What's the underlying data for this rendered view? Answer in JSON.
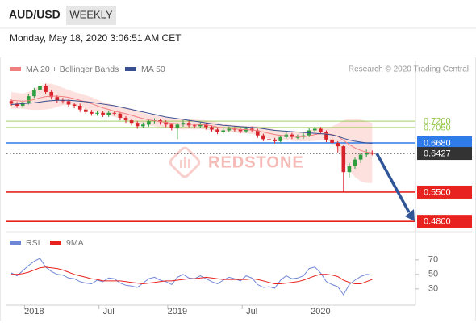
{
  "header": {
    "symbol": "AUD/USD",
    "timeframe": "WEEKLY",
    "timestamp": "Monday, May 18, 2020 3:06:51 AM CET"
  },
  "chart_data": [
    {
      "type": "candlestick",
      "credit": "Research © 2020 Trading Central",
      "watermark": "REDSTONE",
      "up_color": "#2e9e3f",
      "down_color": "#d8232a",
      "open": [
        0.768,
        0.762,
        0.757,
        0.765,
        0.78,
        0.795,
        0.805,
        0.79,
        0.778,
        0.77,
        0.768,
        0.76,
        0.757,
        0.748,
        0.742,
        0.738,
        0.74,
        0.735,
        0.74,
        0.738,
        0.728,
        0.722,
        0.716,
        0.708,
        0.712,
        0.72,
        0.722,
        0.718,
        0.712,
        0.704,
        0.712,
        0.716,
        0.71,
        0.708,
        0.712,
        0.706,
        0.7,
        0.694,
        0.698,
        0.702,
        0.7,
        0.696,
        0.702,
        0.698,
        0.686,
        0.677,
        0.676,
        0.672,
        0.682,
        0.688,
        0.682,
        0.682,
        0.686,
        0.698,
        0.702,
        0.694,
        0.676,
        0.668,
        0.66,
        0.598,
        0.612,
        0.628,
        0.64,
        0.644
      ],
      "high": [
        0.772,
        0.766,
        0.77,
        0.786,
        0.8,
        0.811,
        0.81,
        0.795,
        0.782,
        0.776,
        0.772,
        0.764,
        0.762,
        0.752,
        0.747,
        0.745,
        0.744,
        0.745,
        0.745,
        0.742,
        0.732,
        0.726,
        0.72,
        0.717,
        0.725,
        0.727,
        0.726,
        0.722,
        0.716,
        0.716,
        0.722,
        0.721,
        0.714,
        0.717,
        0.716,
        0.71,
        0.704,
        0.703,
        0.707,
        0.706,
        0.704,
        0.707,
        0.707,
        0.702,
        0.69,
        0.682,
        0.68,
        0.687,
        0.693,
        0.692,
        0.688,
        0.691,
        0.703,
        0.707,
        0.706,
        0.698,
        0.681,
        0.672,
        0.662,
        0.62,
        0.633,
        0.644,
        0.652,
        0.65
      ],
      "low": [
        0.757,
        0.752,
        0.752,
        0.76,
        0.776,
        0.79,
        0.784,
        0.772,
        0.764,
        0.762,
        0.755,
        0.751,
        0.742,
        0.737,
        0.733,
        0.733,
        0.73,
        0.73,
        0.733,
        0.722,
        0.716,
        0.71,
        0.702,
        0.703,
        0.707,
        0.715,
        0.712,
        0.706,
        0.698,
        0.677,
        0.707,
        0.705,
        0.703,
        0.703,
        0.7,
        0.695,
        0.689,
        0.69,
        0.693,
        0.695,
        0.691,
        0.692,
        0.693,
        0.68,
        0.672,
        0.67,
        0.667,
        0.668,
        0.678,
        0.677,
        0.677,
        0.678,
        0.682,
        0.693,
        0.689,
        0.67,
        0.662,
        0.645,
        0.55,
        0.585,
        0.606,
        0.62,
        0.634,
        0.638
      ],
      "close": [
        0.762,
        0.757,
        0.765,
        0.78,
        0.795,
        0.805,
        0.79,
        0.778,
        0.77,
        0.768,
        0.76,
        0.757,
        0.748,
        0.742,
        0.738,
        0.74,
        0.735,
        0.74,
        0.738,
        0.728,
        0.722,
        0.716,
        0.708,
        0.712,
        0.72,
        0.722,
        0.718,
        0.712,
        0.704,
        0.712,
        0.716,
        0.71,
        0.708,
        0.712,
        0.706,
        0.7,
        0.694,
        0.698,
        0.702,
        0.7,
        0.696,
        0.702,
        0.698,
        0.686,
        0.677,
        0.676,
        0.672,
        0.682,
        0.688,
        0.682,
        0.682,
        0.686,
        0.698,
        0.702,
        0.694,
        0.676,
        0.668,
        0.66,
        0.598,
        0.612,
        0.628,
        0.64,
        0.644,
        0.6427
      ],
      "series": [
        {
          "name": "MA 20 + Bollinger Bands",
          "color": "#f08080",
          "band_color": "#fbd9d6",
          "values": [
            0.77,
            0.769,
            0.768,
            0.769,
            0.772,
            0.776,
            0.779,
            0.78,
            0.78,
            0.779,
            0.777,
            0.774,
            0.77,
            0.766,
            0.762,
            0.757,
            0.752,
            0.748,
            0.744,
            0.741,
            0.738,
            0.734,
            0.73,
            0.726,
            0.723,
            0.721,
            0.719,
            0.717,
            0.715,
            0.714,
            0.713,
            0.713,
            0.712,
            0.712,
            0.711,
            0.709,
            0.706,
            0.704,
            0.703,
            0.702,
            0.7,
            0.7,
            0.699,
            0.697,
            0.694,
            0.691,
            0.688,
            0.686,
            0.685,
            0.684,
            0.683,
            0.683,
            0.685,
            0.688,
            0.69,
            0.69,
            0.688,
            0.684,
            0.674,
            0.664,
            0.656,
            0.65,
            0.646,
            0.644
          ],
          "upper": [
            0.79,
            0.788,
            0.786,
            0.79,
            0.797,
            0.805,
            0.81,
            0.81,
            0.806,
            0.8,
            0.795,
            0.79,
            0.786,
            0.782,
            0.778,
            0.772,
            0.766,
            0.762,
            0.758,
            0.755,
            0.753,
            0.75,
            0.745,
            0.74,
            0.736,
            0.734,
            0.732,
            0.73,
            0.728,
            0.727,
            0.726,
            0.725,
            0.724,
            0.723,
            0.722,
            0.72,
            0.717,
            0.714,
            0.712,
            0.711,
            0.709,
            0.709,
            0.709,
            0.708,
            0.706,
            0.704,
            0.7,
            0.698,
            0.696,
            0.695,
            0.694,
            0.694,
            0.698,
            0.703,
            0.706,
            0.706,
            0.707,
            0.715,
            0.722,
            0.726,
            0.726,
            0.724,
            0.72,
            0.716
          ],
          "lower": [
            0.75,
            0.75,
            0.75,
            0.748,
            0.747,
            0.747,
            0.748,
            0.75,
            0.754,
            0.758,
            0.759,
            0.758,
            0.754,
            0.75,
            0.746,
            0.742,
            0.738,
            0.734,
            0.73,
            0.727,
            0.723,
            0.718,
            0.715,
            0.712,
            0.71,
            0.708,
            0.706,
            0.704,
            0.702,
            0.701,
            0.7,
            0.701,
            0.7,
            0.701,
            0.7,
            0.698,
            0.695,
            0.694,
            0.694,
            0.693,
            0.691,
            0.691,
            0.689,
            0.686,
            0.682,
            0.678,
            0.676,
            0.674,
            0.674,
            0.673,
            0.672,
            0.672,
            0.672,
            0.673,
            0.674,
            0.674,
            0.669,
            0.653,
            0.626,
            0.602,
            0.586,
            0.576,
            0.572,
            0.572
          ]
        },
        {
          "name": "MA 50",
          "color": "#3a4f8f",
          "values": [
            0.76,
            0.761,
            0.762,
            0.763,
            0.764,
            0.766,
            0.768,
            0.769,
            0.77,
            0.77,
            0.77,
            0.769,
            0.768,
            0.767,
            0.765,
            0.763,
            0.761,
            0.759,
            0.757,
            0.754,
            0.751,
            0.748,
            0.745,
            0.742,
            0.739,
            0.736,
            0.733,
            0.73,
            0.728,
            0.726,
            0.724,
            0.722,
            0.72,
            0.718,
            0.716,
            0.714,
            0.712,
            0.71,
            0.709,
            0.708,
            0.707,
            0.706,
            0.705,
            0.704,
            0.702,
            0.7,
            0.698,
            0.697,
            0.696,
            0.695,
            0.694,
            0.693,
            0.692,
            0.691,
            0.69,
            0.689,
            0.687,
            0.684,
            0.679,
            0.675,
            0.672,
            0.67,
            0.668,
            0.667
          ]
        }
      ],
      "levels": [
        {
          "value": 0.72,
          "label": "0.7200",
          "color": "#8dc63f",
          "boxed": false
        },
        {
          "value": 0.705,
          "label": "0.7050",
          "color": "#8dc63f",
          "boxed": false
        },
        {
          "value": 0.668,
          "label": "0.6680",
          "color": "#2f7bea",
          "boxed": true
        },
        {
          "value": 0.6427,
          "label": "0.6427",
          "color": "#333333",
          "boxed": true,
          "dotted": true
        },
        {
          "value": 0.55,
          "label": "0.5500",
          "color": "#e8231f",
          "boxed": true
        },
        {
          "value": 0.48,
          "label": "0.4800",
          "color": "#e8231f",
          "boxed": true
        }
      ],
      "ylim": [
        0.459,
        0.817
      ]
    },
    {
      "type": "line",
      "categories": [
        null,
        null,
        null,
        null,
        "2018",
        null,
        null,
        null,
        null,
        null,
        null,
        null,
        null,
        null,
        null,
        null,
        null,
        "Jul",
        null,
        null,
        null,
        null,
        null,
        null,
        null,
        null,
        null,
        null,
        null,
        "2019",
        null,
        null,
        null,
        null,
        null,
        null,
        null,
        null,
        null,
        null,
        null,
        null,
        "Jul",
        null,
        null,
        null,
        null,
        null,
        null,
        null,
        null,
        null,
        null,
        null,
        "2020",
        null,
        null,
        null,
        null,
        null,
        null,
        null,
        null,
        null
      ],
      "series": [
        {
          "name": "RSI",
          "color": "#6f86d6",
          "values": [
            52,
            48,
            55,
            62,
            68,
            72,
            60,
            54,
            50,
            49,
            45,
            44,
            40,
            38,
            37,
            42,
            40,
            45,
            44,
            38,
            35,
            34,
            32,
            38,
            44,
            46,
            42,
            40,
            36,
            46,
            50,
            45,
            44,
            48,
            44,
            40,
            37,
            42,
            46,
            44,
            41,
            48,
            45,
            36,
            32,
            33,
            31,
            42,
            48,
            44,
            45,
            48,
            58,
            60,
            52,
            40,
            36,
            33,
            22,
            36,
            42,
            47,
            50,
            49
          ]
        },
        {
          "name": "9MA",
          "color": "#e8231f",
          "values": [
            50,
            50,
            51,
            53,
            56,
            59,
            60,
            59,
            58,
            56,
            53,
            50,
            48,
            46,
            44,
            43,
            41,
            41,
            41,
            41,
            40,
            39,
            38,
            37,
            38,
            39,
            40,
            41,
            41,
            42,
            43,
            44,
            44,
            45,
            46,
            45,
            44,
            43,
            43,
            43,
            43,
            43,
            44,
            43,
            41,
            39,
            37,
            37,
            38,
            39,
            40,
            42,
            45,
            48,
            50,
            50,
            49,
            47,
            42,
            39,
            37,
            37,
            40,
            43
          ]
        }
      ],
      "ylim": [
        22,
        92
      ],
      "yticks": [
        30,
        50,
        70
      ]
    }
  ]
}
